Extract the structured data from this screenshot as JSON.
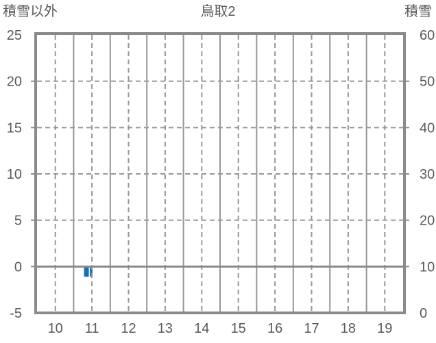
{
  "title": "鳥取2",
  "left_axis_title": "積雪以外",
  "right_axis_title": "積雪",
  "chart_data": {
    "type": "bar",
    "title": "鳥取2",
    "xlabel": "",
    "ylabel_left": "積雪以外",
    "ylabel_right": "積雪",
    "x_axis": {
      "range": [
        9.5,
        19.5
      ],
      "ticks": [
        10,
        11,
        12,
        13,
        14,
        15,
        16,
        17,
        18,
        19
      ],
      "solid_gridlines": [
        10.5,
        11.5,
        12.5,
        13.5,
        14.5,
        15.5,
        16.5,
        17.5,
        18.5
      ]
    },
    "y_left": {
      "label": "積雪以外",
      "range": [
        -5,
        25
      ],
      "ticks": [
        25,
        20,
        15,
        10,
        5,
        0,
        -5
      ],
      "dashed_gridlines": [
        20,
        15,
        10,
        5
      ],
      "zero_line": 0
    },
    "y_right": {
      "label": "積雪",
      "range": [
        0,
        60
      ],
      "ticks": [
        60,
        50,
        40,
        30,
        20,
        10,
        0
      ]
    },
    "series": [
      {
        "name": "積雪以外",
        "type": "bar",
        "color": "#1272b9",
        "bars": [
          {
            "x": 10.85,
            "width": 0.13,
            "value": -1.1
          },
          {
            "x": 10.98,
            "width": 0.07,
            "value": -1.1
          }
        ]
      }
    ],
    "legend": "none",
    "grid": {
      "dash": [
        7,
        5
      ],
      "grid_color": "#969696",
      "border_color": "#8a8a8a",
      "zero_line_color": "#8a8a8a",
      "text_color": "#5a5a5a",
      "background": "#ffffff"
    }
  }
}
